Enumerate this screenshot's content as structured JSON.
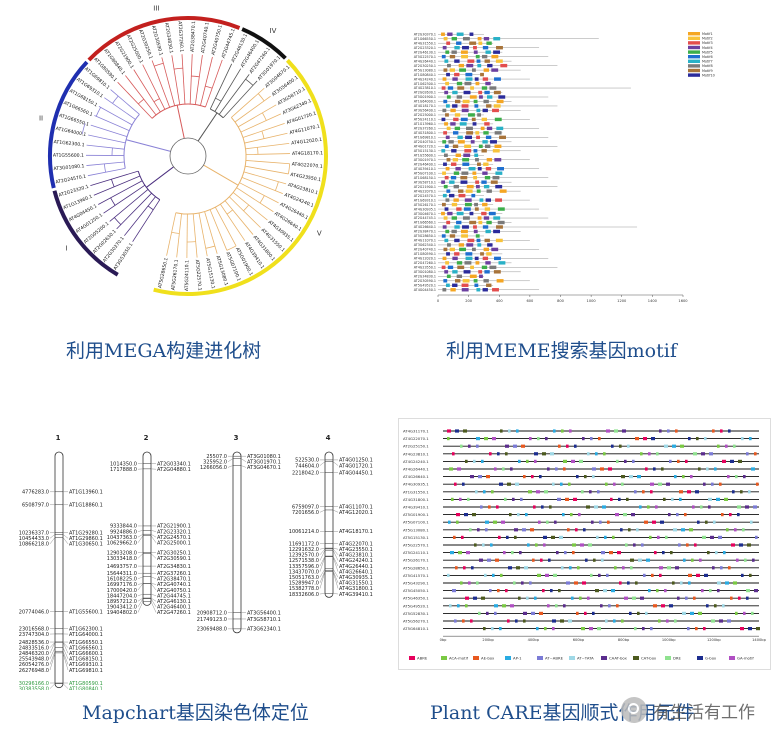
{
  "captions": {
    "tree": "利用MEGA构建进化树",
    "meme": "利用MEME搜索基因motif",
    "mapchart": "Mapchart基因染色体定位",
    "plantcare": "Plant CARE基因顺式作用元件"
  },
  "tree": {
    "clade_labels": [
      "I",
      "II",
      "III",
      "IV",
      "V"
    ],
    "colors": {
      "I": "#2a1a55",
      "II": "#1f2fb0",
      "III": "#c3201e",
      "IV": "#111111",
      "V": "#f0e01c"
    },
    "leaves": [
      "AT3G53050.1",
      "AT2G30370.1",
      "AT2G02630.1",
      "AT2G05200.1",
      "AT4G01250.1",
      "AT4G04450.1",
      "AT1G13960.1",
      "AT2G23320.1",
      "AT2G24570.1",
      "AT3G01080.1",
      "AT1G55600.1",
      "AT1G62300.1",
      "AT1G64000.1",
      "AT1G66550.1",
      "AT1G66560.1",
      "AT1G68150.1",
      "AT1G69310.1",
      "AT1G69810.1",
      "AT1G80590.1",
      "AT1G80840.1",
      "AT2G21900.1",
      "AT2G25000.1",
      "AT2G30250.1",
      "AT2G30590.1",
      "AT2G34830.1",
      "AT2G37260.1",
      "AT2G38470.1",
      "AT2G40740.1",
      "AT2G40750.1",
      "AT2G44745.1",
      "AT2G46130.1",
      "AT2G46400.1",
      "AT2G47260.1",
      "AT3G01970.1",
      "AT3G04670.1",
      "AT3G56400.1",
      "AT3G58710.1",
      "AT3G62340.1",
      "AT4G01720.1",
      "AT4G11070.1",
      "AT4G12020.1",
      "AT4G18170.1",
      "AT4G22070.1",
      "AT4G23550.1",
      "AT4G23810.1",
      "AT4G24240.1",
      "AT4G26440.1",
      "AT4G26640.1",
      "AT4G30935.1",
      "AT4G31550.1",
      "AT4G31800.1",
      "AT4G39410.1",
      "AT5G01900.1",
      "AT5G07100.1",
      "AT5G13080.1",
      "AT5G15130.1",
      "AT5G22570.1",
      "AT5G24110.1",
      "AT5G26170.1",
      "AT5G28650.1"
    ]
  },
  "meme": {
    "legend": [
      "Motif1",
      "Motif2",
      "Motif3",
      "Motif4",
      "Motif5",
      "Motif6",
      "Motif7",
      "Motif8",
      "Motif9",
      "Motif10"
    ],
    "legend_colors": [
      "#f5a623",
      "#f8c33a",
      "#e34d4d",
      "#6b3fa0",
      "#3cae4a",
      "#1e6fd0",
      "#29b1c7",
      "#7a7a7a",
      "#a8743a",
      "#2b2b9b"
    ],
    "axis_ticks": [
      "0",
      "200",
      "400",
      "600",
      "800",
      "1000",
      "1200",
      "1400",
      "1600"
    ],
    "genes": [
      "AT2G30370.1",
      "AT1G66550.1",
      "AT4G31550.1",
      "AT2G23320.1",
      "AT2G46130.1",
      "AT5G22570.1",
      "AT4G26440.1",
      "AT2G30250.1",
      "AT5G13080.1",
      "AT1G80840.1",
      "AT4G24240.1",
      "AT1G62300.1",
      "AT4G23810.1",
      "AT2G02630.1",
      "AT5G01900.1",
      "AT1G64000.1",
      "AT4G18170.1",
      "AT3G56400.1",
      "AT2G25000.1",
      "AT5G24110.1",
      "AT1G13960.1",
      "AT2G37260.1",
      "AT4G31800.1",
      "AT1G69810.1",
      "AT2G40750.1",
      "AT4G01720.1",
      "AT5G15130.1",
      "AT1G55600.1",
      "AT3G01970.1",
      "AT2G46400.1",
      "AT4G39410.1",
      "AT5G07100.1",
      "AT1G68150.1",
      "AT3G58710.1",
      "AT2G21900.1",
      "AT4G22070.1",
      "AT2G24570.1",
      "AT1G69310.1",
      "AT5G26170.1",
      "AT4G30935.1",
      "AT3G04670.1",
      "AT2G44745.1",
      "AT1G66560.1",
      "AT4G26640.1",
      "AT2G38470.1",
      "AT5G28650.1",
      "AT4G11070.1",
      "AT3G62340.1",
      "AT2G40740.1",
      "AT1G80590.1",
      "AT4G12020.1",
      "AT2G47260.1",
      "AT4G23550.1",
      "AT3G01080.1",
      "AT2G34830.1",
      "AT2G30590.1",
      "AT5G49520.1",
      "AT4G04450.1"
    ]
  },
  "mapchart": {
    "chromosomes": [
      {
        "name": "1",
        "markers": [
          {
            "pos": "4776283.0",
            "gene": "AT1G13960.1"
          },
          {
            "pos": "6508797.0",
            "gene": "AT1G18860.1"
          },
          {
            "pos": "10236337.0",
            "gene": "AT1G29280.1"
          },
          {
            "pos": "10454433.0",
            "gene": "AT1G29860.1"
          },
          {
            "pos": "10866218.0",
            "gene": "AT1G30650.1"
          },
          {
            "pos": "20774046.0",
            "gene": "AT1G55600.1"
          },
          {
            "pos": "23016568.0",
            "gene": "AT1G62300.1"
          },
          {
            "pos": "23747304.0",
            "gene": "AT1G64000.1"
          },
          {
            "pos": "24828536.0",
            "gene": "AT1G66550.1"
          },
          {
            "pos": "24833516.0",
            "gene": "AT1G66560.1"
          },
          {
            "pos": "24846320.0",
            "gene": "AT1G66600.1"
          },
          {
            "pos": "25543948.0",
            "gene": "AT1G68150.1"
          },
          {
            "pos": "26054276.0",
            "gene": "AT1G69310.1"
          },
          {
            "pos": "26276948.0",
            "gene": "AT1G69810.1"
          },
          {
            "pos": "30296166.0",
            "gene": "AT1G80590.1",
            "green": true
          },
          {
            "pos": "30383558.0",
            "gene": "AT1G80840.1",
            "green": true
          }
        ]
      },
      {
        "name": "2",
        "markers": [
          {
            "pos": "1014350.0",
            "gene": "AT2G03340.1"
          },
          {
            "pos": "1717888.0",
            "gene": "AT2G04880.1"
          },
          {
            "pos": "9333844.0",
            "gene": "AT2G21900.1"
          },
          {
            "pos": "9924886.0",
            "gene": "AT2G23320.1"
          },
          {
            "pos": "10437363.0",
            "gene": "AT2G24570.1"
          },
          {
            "pos": "10629662.0",
            "gene": "AT2G25000.1"
          },
          {
            "pos": "12903208.0",
            "gene": "AT2G30250.1"
          },
          {
            "pos": "13033418.0",
            "gene": "AT2G30590.1"
          },
          {
            "pos": "14693757.0",
            "gene": "AT2G34830.1"
          },
          {
            "pos": "15644311.0",
            "gene": "AT2G37260.1"
          },
          {
            "pos": "16108225.0",
            "gene": "AT2G38470.1"
          },
          {
            "pos": "16997176.0",
            "gene": "AT2G40740.1"
          },
          {
            "pos": "17000420.0",
            "gene": "AT2G40750.1"
          },
          {
            "pos": "18447204.0",
            "gene": "AT2G44745.1"
          },
          {
            "pos": "18957212.0",
            "gene": "AT2G46130.1"
          },
          {
            "pos": "19043412.0",
            "gene": "AT2G46400.1"
          },
          {
            "pos": "19404802.0",
            "gene": "AT2G47260.1"
          }
        ]
      },
      {
        "name": "3",
        "markers": [
          {
            "pos": "25507.0",
            "gene": "AT3G01080.1"
          },
          {
            "pos": "325952.0",
            "gene": "AT3G01970.1"
          },
          {
            "pos": "1266056.0",
            "gene": "AT3G04670.1"
          },
          {
            "pos": "20908712.0",
            "gene": "AT3G56400.1"
          },
          {
            "pos": "21749123.0",
            "gene": "AT3G58710.1"
          },
          {
            "pos": "23069488.0",
            "gene": "AT3G62340.1"
          }
        ]
      },
      {
        "name": "4",
        "markers": [
          {
            "pos": "522530.0",
            "gene": "AT4G01250.1"
          },
          {
            "pos": "744604.0",
            "gene": "AT4G01720.1"
          },
          {
            "pos": "2218042.0",
            "gene": "AT4G04450.1"
          },
          {
            "pos": "6759097.0",
            "gene": "AT4G11070.1"
          },
          {
            "pos": "7201656.0",
            "gene": "AT4G12020.1"
          },
          {
            "pos": "10061214.0",
            "gene": "AT4G18170.1"
          },
          {
            "pos": "11691172.0",
            "gene": "AT4G22070.1"
          },
          {
            "pos": "12291632.0",
            "gene": "AT4G23550.1"
          },
          {
            "pos": "12392570.0",
            "gene": "AT4G23810.1"
          },
          {
            "pos": "12571538.0",
            "gene": "AT4G24240.1"
          },
          {
            "pos": "13357596.0",
            "gene": "AT4G26440.1"
          },
          {
            "pos": "13437070.0",
            "gene": "AT4G26640.1"
          },
          {
            "pos": "15051763.0",
            "gene": "AT4G30935.1"
          },
          {
            "pos": "15289947.0",
            "gene": "AT4G31550.1"
          },
          {
            "pos": "15382778.0",
            "gene": "AT4G31800.1"
          },
          {
            "pos": "18332606.0",
            "gene": "AT4G39410.1"
          }
        ]
      }
    ]
  },
  "plantcare": {
    "genes": [
      "AT4G31170.1",
      "AT4G22070.1",
      "AT2G25150.1",
      "AT4G23810.1",
      "AT4G24240.1",
      "AT4G26440.1",
      "AT4G26640.1",
      "AT4G30935.1",
      "AT1G31550.1",
      "AT4G31800.1",
      "AT4G39410.1",
      "AT5G01900.1",
      "AT5G07100.1",
      "AT5G13080.1",
      "AT5G15130.1",
      "AT5G22570.1",
      "AT5G24110.1",
      "AT5G26170.1",
      "AT5G28650.1",
      "AT5G41570.1",
      "AT5G43290.1",
      "AT5G45050.1",
      "AT5G46350.1",
      "AT5G49520.1",
      "AT5G52830.1",
      "AT5G56270.1",
      "AT5G64810.1"
    ],
    "axis_ticks": [
      "0bp",
      "200bp",
      "400bp",
      "600bp",
      "800bp",
      "1000bp",
      "1200bp",
      "1400bp"
    ],
    "legend": [
      "ABRE",
      "ACA-motif",
      "AE-box",
      "AP-1",
      "AT~ABRE",
      "AT~TATA",
      "CAAT-box",
      "CAT-box",
      "DRE",
      "G-box",
      "GA-motif"
    ],
    "legend_colors": [
      "#e6005c",
      "#7ac943",
      "#e8581f",
      "#29abe2",
      "#7b7bd6",
      "#9fd8e6",
      "#5b2d8e",
      "#4d5a1e",
      "#8fe28f",
      "#1c2d8f",
      "#b04fc3"
    ]
  },
  "watermark": "有生活有工作"
}
